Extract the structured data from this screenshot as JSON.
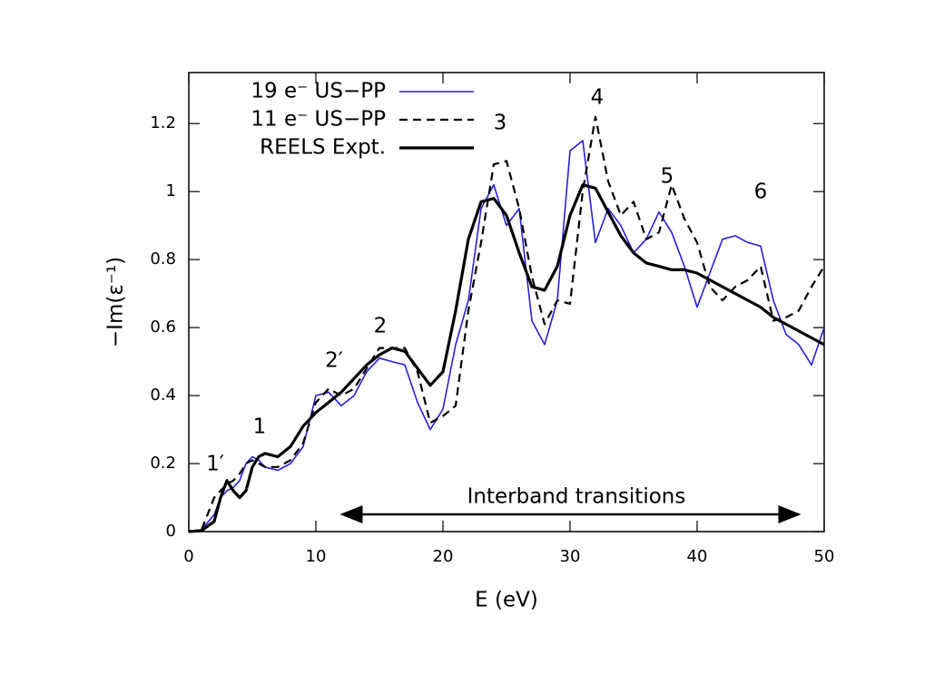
{
  "chart_data": {
    "type": "line",
    "xlabel": "E (eV)",
    "ylabel": "−Im(ε⁻¹)",
    "x": [
      0,
      1,
      2,
      2.5,
      3,
      3.5,
      4,
      4.5,
      5,
      5.5,
      6,
      7,
      8,
      9,
      10,
      11,
      12,
      13,
      14,
      15,
      16,
      17,
      18,
      19,
      20,
      21,
      22,
      23,
      24,
      25,
      26,
      27,
      28,
      29,
      30,
      31,
      32,
      33,
      34,
      35,
      36,
      37,
      38,
      39,
      40,
      41,
      42,
      43,
      44,
      45,
      46,
      47,
      48,
      49,
      50
    ],
    "series": [
      {
        "name": "19 e⁻ US−PP",
        "color": "#2323d8",
        "style": "solid",
        "values": [
          0,
          0.005,
          0.05,
          0.1,
          0.12,
          0.13,
          0.15,
          0.2,
          0.22,
          0.21,
          0.19,
          0.18,
          0.2,
          0.25,
          0.4,
          0.41,
          0.37,
          0.4,
          0.47,
          0.51,
          0.5,
          0.49,
          0.38,
          0.3,
          0.36,
          0.55,
          0.68,
          0.95,
          1.02,
          0.9,
          0.95,
          0.62,
          0.55,
          0.68,
          1.12,
          1.15,
          0.85,
          0.95,
          0.9,
          0.82,
          0.86,
          0.94,
          0.88,
          0.78,
          0.66,
          0.76,
          0.86,
          0.87,
          0.85,
          0.84,
          0.68,
          0.58,
          0.55,
          0.49,
          0.6
        ]
      },
      {
        "name": "11 e⁻ US−PP",
        "color": "#000000",
        "style": "dashed",
        "values": [
          0,
          0.005,
          0.1,
          0.12,
          0.14,
          0.15,
          0.17,
          0.2,
          0.21,
          0.2,
          0.19,
          0.19,
          0.21,
          0.26,
          0.38,
          0.42,
          0.4,
          0.42,
          0.48,
          0.54,
          0.54,
          0.54,
          0.47,
          0.32,
          0.34,
          0.37,
          0.65,
          0.85,
          1.08,
          1.09,
          0.95,
          0.75,
          0.61,
          0.68,
          0.67,
          1.0,
          1.22,
          1.03,
          0.93,
          0.97,
          0.86,
          0.88,
          1.02,
          0.92,
          0.85,
          0.72,
          0.68,
          0.72,
          0.74,
          0.78,
          0.62,
          0.63,
          0.65,
          0.72,
          0.78
        ]
      },
      {
        "name": "REELS Expt.",
        "color": "#000000",
        "style": "thick",
        "values": [
          0,
          0.003,
          0.03,
          0.1,
          0.15,
          0.12,
          0.1,
          0.12,
          0.19,
          0.22,
          0.23,
          0.22,
          0.25,
          0.31,
          0.35,
          0.38,
          0.41,
          0.45,
          0.49,
          0.52,
          0.54,
          0.53,
          0.48,
          0.43,
          0.47,
          0.65,
          0.86,
          0.97,
          0.98,
          0.93,
          0.82,
          0.72,
          0.71,
          0.78,
          0.93,
          1.02,
          1.01,
          0.94,
          0.87,
          0.82,
          0.79,
          0.78,
          0.77,
          0.77,
          0.76,
          0.74,
          0.72,
          0.7,
          0.68,
          0.66,
          0.63,
          0.61,
          0.59,
          0.57,
          0.55
        ]
      }
    ],
    "xlim": [
      0,
      50
    ],
    "xticks": [
      0,
      10,
      20,
      30,
      40,
      50
    ],
    "ylim": [
      0,
      1.35
    ],
    "yticks": [
      0,
      0.2,
      0.4,
      0.6,
      0.8,
      1,
      1.2
    ],
    "legend": "upper left",
    "annotations": [
      "1′",
      "1",
      "2′",
      "2",
      "3",
      "4",
      "5",
      "6",
      "Interband transitions"
    ]
  }
}
